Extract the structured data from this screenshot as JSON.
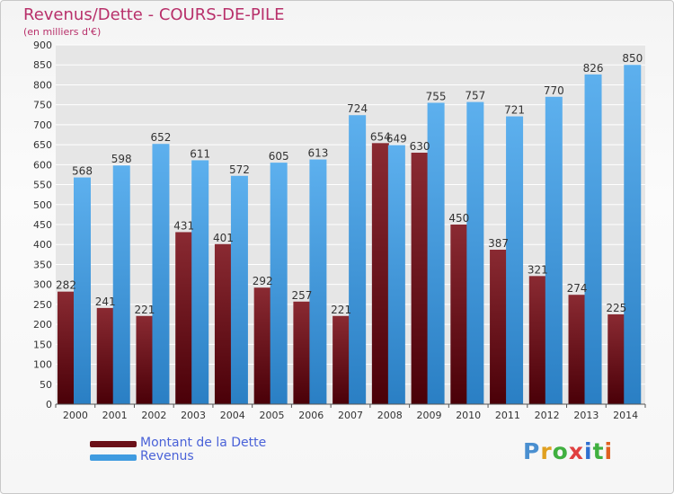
{
  "title": "Revenus/Dette - COURS-DE-PILE",
  "subtitle": "(en milliers d'€)",
  "colors": {
    "title": "#b8306a",
    "dette": "#6b1018",
    "revenus": "#3f9be0",
    "legend_text": "#4a62d8",
    "grid": "#ffffff",
    "axis_text": "#333333"
  },
  "legend": [
    {
      "label": "Montant de la Dette",
      "color": "#6b1018"
    },
    {
      "label": "Revenus",
      "color": "#3f9be0"
    }
  ],
  "logo": {
    "text": "Proxiti",
    "letter_colors": [
      "#4a8fd0",
      "#e0a020",
      "#40b040",
      "#e04040",
      "#3070d0",
      "#40b040",
      "#e06020"
    ]
  },
  "chart_data": {
    "type": "bar",
    "categories": [
      "2000",
      "2001",
      "2002",
      "2003",
      "2004",
      "2005",
      "2006",
      "2007",
      "2008",
      "2009",
      "2010",
      "2011",
      "2012",
      "2013",
      "2014"
    ],
    "series": [
      {
        "name": "Montant de la Dette",
        "values": [
          282,
          241,
          221,
          431,
          401,
          292,
          257,
          221,
          654,
          630,
          450,
          387,
          321,
          274,
          225
        ]
      },
      {
        "name": "Revenus",
        "values": [
          568,
          598,
          652,
          611,
          572,
          605,
          613,
          724,
          649,
          755,
          757,
          721,
          770,
          826,
          850
        ]
      }
    ],
    "ylim": [
      0,
      900
    ],
    "ytick_step": 50,
    "grid": true,
    "legend_position": "bottom-left"
  }
}
